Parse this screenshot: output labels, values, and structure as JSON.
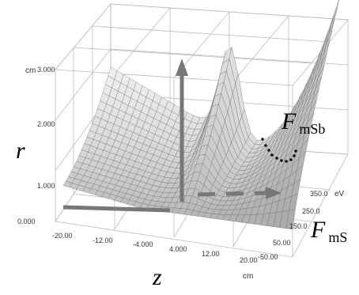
{
  "chart_data": {
    "type": "surface3d",
    "y_unit": "cm",
    "x_unit": "cm",
    "depth_unit": "eV",
    "y_ticks": [
      "0.000",
      "1.000",
      "2.000",
      "3.000"
    ],
    "x_ticks": [
      "-20.00",
      "-12.00",
      "-4.000",
      "4.000",
      "12.00",
      "20.00"
    ],
    "depth_ticks": [
      "350.0",
      "250.0",
      "150.0",
      "50.00",
      "-50.00"
    ],
    "labels": {
      "r": "r",
      "z": "z",
      "fmsb_main": "F",
      "fmsb_sub": "mSb",
      "fms_main": "F",
      "fms_sub": "mS"
    },
    "surface_color": "#bdbdbd",
    "arrow_color": "#777777"
  }
}
